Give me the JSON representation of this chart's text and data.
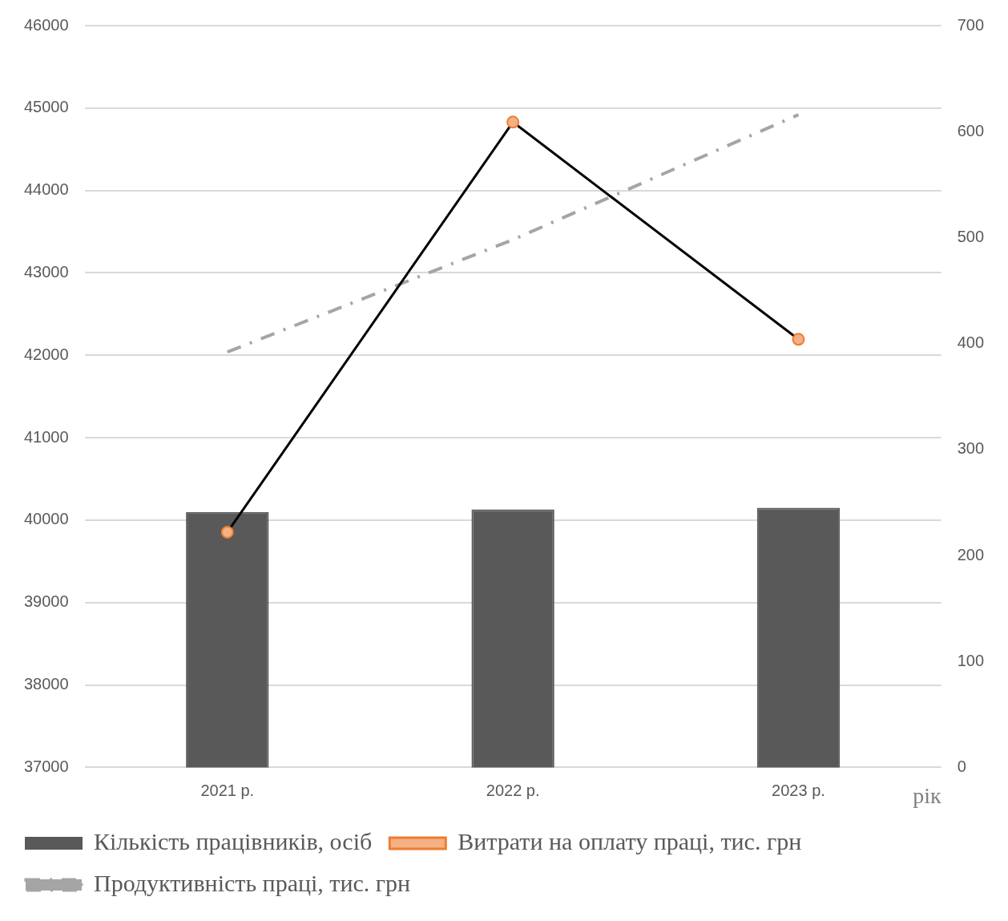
{
  "chart_data": {
    "type": "bar",
    "categories": [
      "2021 р.",
      "2022 р.",
      "2023 р."
    ],
    "xlabel": "рік",
    "series": [
      {
        "name": "Кількість працівників, осіб",
        "color": "#595959",
        "values": [
          40100,
          40130,
          40150
        ]
      },
      {
        "name": "Витрати на оплату праці, тис. грн",
        "type": "line",
        "axis": "y2",
        "color": "#ed7d31",
        "marker": "circle",
        "values": [
          222,
          609,
          404
        ]
      },
      {
        "name": "Продуктивність праці, тис. грн",
        "type": "line",
        "axis": "y2",
        "color": "#a5a5a5",
        "marker": "none",
        "line_style": "dashed",
        "values": [
          392,
          498,
          616
        ]
      }
    ],
    "ylim": [
      37000,
      46000
    ],
    "yticks": [
      37000,
      38000,
      39000,
      40000,
      41000,
      42000,
      43000,
      44000,
      45000,
      46000
    ],
    "y2lim": [
      0,
      700
    ],
    "y2ticks": [
      0,
      100,
      200,
      300,
      400,
      500,
      600,
      700
    ],
    "grid": "y",
    "legend": "bottom"
  }
}
